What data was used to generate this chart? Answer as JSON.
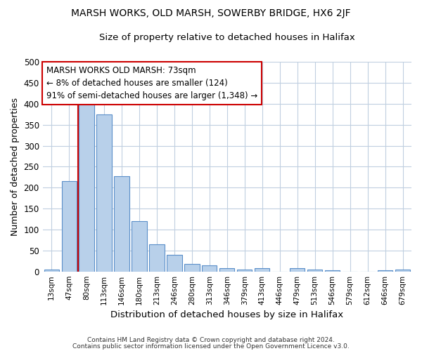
{
  "title1": "MARSH WORKS, OLD MARSH, SOWERBY BRIDGE, HX6 2JF",
  "title2": "Size of property relative to detached houses in Halifax",
  "xlabel": "Distribution of detached houses by size in Halifax",
  "ylabel": "Number of detached properties",
  "categories": [
    "13sqm",
    "47sqm",
    "80sqm",
    "113sqm",
    "146sqm",
    "180sqm",
    "213sqm",
    "246sqm",
    "280sqm",
    "313sqm",
    "346sqm",
    "379sqm",
    "413sqm",
    "446sqm",
    "479sqm",
    "513sqm",
    "546sqm",
    "579sqm",
    "612sqm",
    "646sqm",
    "679sqm"
  ],
  "values": [
    4,
    215,
    405,
    375,
    228,
    120,
    65,
    40,
    18,
    14,
    8,
    5,
    7,
    0,
    8,
    5,
    2,
    0,
    0,
    2,
    4
  ],
  "bar_color": "#b8d0ea",
  "bar_edge_color": "#5b8fc9",
  "vline_x_index": 2,
  "vline_color": "#cc0000",
  "annotation_line1": "MARSH WORKS OLD MARSH: 73sqm",
  "annotation_line2": "← 8% of detached houses are smaller (124)",
  "annotation_line3": "91% of semi-detached houses are larger (1,348) →",
  "annotation_box_color": "#ffffff",
  "annotation_box_edge": "#cc0000",
  "ylim": [
    0,
    500
  ],
  "yticks": [
    0,
    50,
    100,
    150,
    200,
    250,
    300,
    350,
    400,
    450,
    500
  ],
  "footer1": "Contains HM Land Registry data © Crown copyright and database right 2024.",
  "footer2": "Contains public sector information licensed under the Open Government Licence v3.0.",
  "bg_color": "#ffffff",
  "grid_color": "#c0cfe0"
}
